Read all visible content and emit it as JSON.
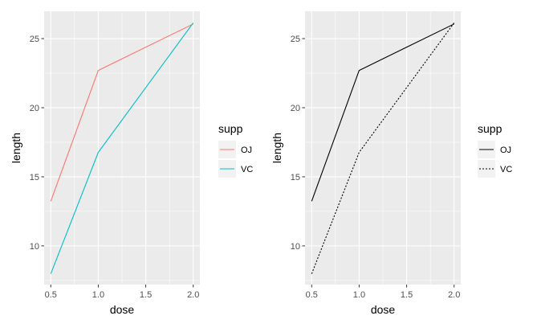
{
  "chart_data": [
    {
      "type": "line",
      "title": "",
      "xlabel": "dose",
      "ylabel": "length",
      "xlim": [
        0.43,
        2.07
      ],
      "ylim": [
        7.2,
        26.98
      ],
      "xticks": [
        0.5,
        1.0,
        1.5,
        2.0
      ],
      "xtick_labels": [
        "0.5",
        "1.0",
        "1.5",
        "2.0"
      ],
      "yticks": [
        10,
        15,
        20,
        25
      ],
      "ytick_labels": [
        "10",
        "15",
        "20",
        "25"
      ],
      "grid": true,
      "legend": {
        "title": "supp",
        "position": "right"
      },
      "series": [
        {
          "name": "OJ",
          "x": [
            0.5,
            1.0,
            2.0
          ],
          "y": [
            13.23,
            22.7,
            26.06
          ],
          "color": "#F8766D",
          "dash": "solid"
        },
        {
          "name": "VC",
          "x": [
            0.5,
            1.0,
            2.0
          ],
          "y": [
            7.98,
            16.77,
            26.14
          ],
          "color": "#00BFC4",
          "dash": "solid"
        }
      ]
    },
    {
      "type": "line",
      "title": "",
      "xlabel": "dose",
      "ylabel": "length",
      "xlim": [
        0.43,
        2.07
      ],
      "ylim": [
        7.2,
        26.98
      ],
      "xticks": [
        0.5,
        1.0,
        1.5,
        2.0
      ],
      "xtick_labels": [
        "0.5",
        "1.0",
        "1.5",
        "2.0"
      ],
      "yticks": [
        10,
        15,
        20,
        25
      ],
      "ytick_labels": [
        "10",
        "15",
        "20",
        "25"
      ],
      "grid": true,
      "legend": {
        "title": "supp",
        "position": "right"
      },
      "series": [
        {
          "name": "OJ",
          "x": [
            0.5,
            1.0,
            2.0
          ],
          "y": [
            13.23,
            22.7,
            26.06
          ],
          "color": "#000000",
          "dash": "solid"
        },
        {
          "name": "VC",
          "x": [
            0.5,
            1.0,
            2.0
          ],
          "y": [
            7.98,
            16.77,
            26.14
          ],
          "color": "#000000",
          "dash": "dotted"
        }
      ]
    }
  ],
  "colors": {
    "panel_background": "#EBEBEB",
    "grid_major": "#FFFFFF",
    "legend_key_background": "#F2F2F2",
    "tick_mark": "#333333"
  }
}
